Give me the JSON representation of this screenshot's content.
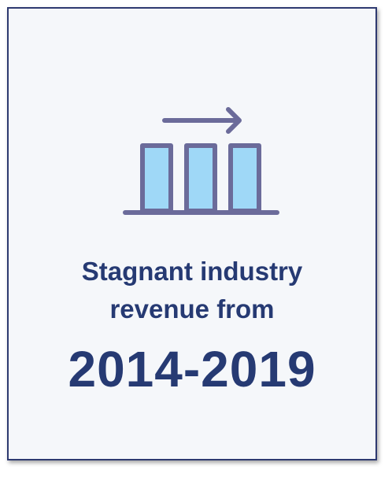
{
  "card": {
    "headline_line1": "Stagnant industry",
    "headline_line2": "revenue from",
    "years": "2014-2019"
  },
  "icon": {
    "name": "stagnant-bar-chart-arrow-icon",
    "outline_color": "#6b6b9a",
    "fill_color": "#9fd8f7"
  },
  "colors": {
    "text": "#263a73",
    "border": "#2e3a70",
    "background": "#f5f7fa"
  }
}
